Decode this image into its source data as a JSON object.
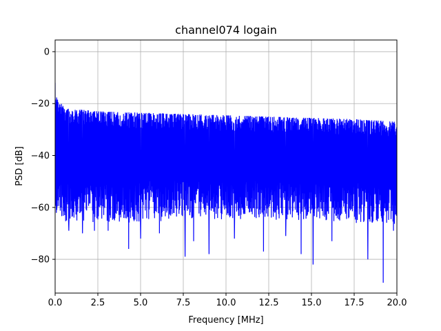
{
  "chart_data": {
    "type": "line",
    "title": "channel074 logain",
    "xlabel": "Frequency [MHz]",
    "ylabel": "PSD [dB]",
    "xlim": [
      0,
      20
    ],
    "ylim": [
      -93,
      4.5
    ],
    "grid": true,
    "line_color": "#0000ff",
    "x_ticks": [
      0,
      2.5,
      5,
      7.5,
      10,
      12.5,
      15,
      17.5,
      20
    ],
    "x_tick_labels": [
      "0.0",
      "2.5",
      "5.0",
      "7.5",
      "10.0",
      "12.5",
      "15.0",
      "17.5",
      "20.0"
    ],
    "y_ticks": [
      0,
      -20,
      -40,
      -60,
      -80
    ],
    "y_tick_labels": [
      "0",
      "−20",
      "−40",
      "−60",
      "−80"
    ],
    "envelope": {
      "x": [
        0,
        0.05,
        0.2,
        0.5,
        1.0,
        2.5,
        5.0,
        7.5,
        10.0,
        12.5,
        15.0,
        17.5,
        20.0
      ],
      "upper": [
        -12,
        -17,
        -19,
        -21,
        -22,
        -23,
        -23.5,
        -24,
        -24.5,
        -25,
        -25.5,
        -26,
        -27
      ],
      "lower": [
        -62,
        -63,
        -64,
        -64,
        -65,
        -64,
        -64,
        -63,
        -63,
        -63,
        -63,
        -64,
        -65
      ]
    },
    "dips": [
      {
        "x": 0.8,
        "y": -69
      },
      {
        "x": 1.6,
        "y": -70
      },
      {
        "x": 2.3,
        "y": -69
      },
      {
        "x": 3.1,
        "y": -69
      },
      {
        "x": 4.3,
        "y": -76
      },
      {
        "x": 5.0,
        "y": -72
      },
      {
        "x": 6.1,
        "y": -70
      },
      {
        "x": 7.6,
        "y": -79
      },
      {
        "x": 8.1,
        "y": -73
      },
      {
        "x": 9.0,
        "y": -78
      },
      {
        "x": 10.5,
        "y": -72
      },
      {
        "x": 12.2,
        "y": -77
      },
      {
        "x": 13.5,
        "y": -71
      },
      {
        "x": 14.4,
        "y": -78
      },
      {
        "x": 15.1,
        "y": -82
      },
      {
        "x": 16.2,
        "y": -73
      },
      {
        "x": 18.3,
        "y": -80
      },
      {
        "x": 19.2,
        "y": -89
      },
      {
        "x": 19.8,
        "y": -69
      }
    ]
  }
}
